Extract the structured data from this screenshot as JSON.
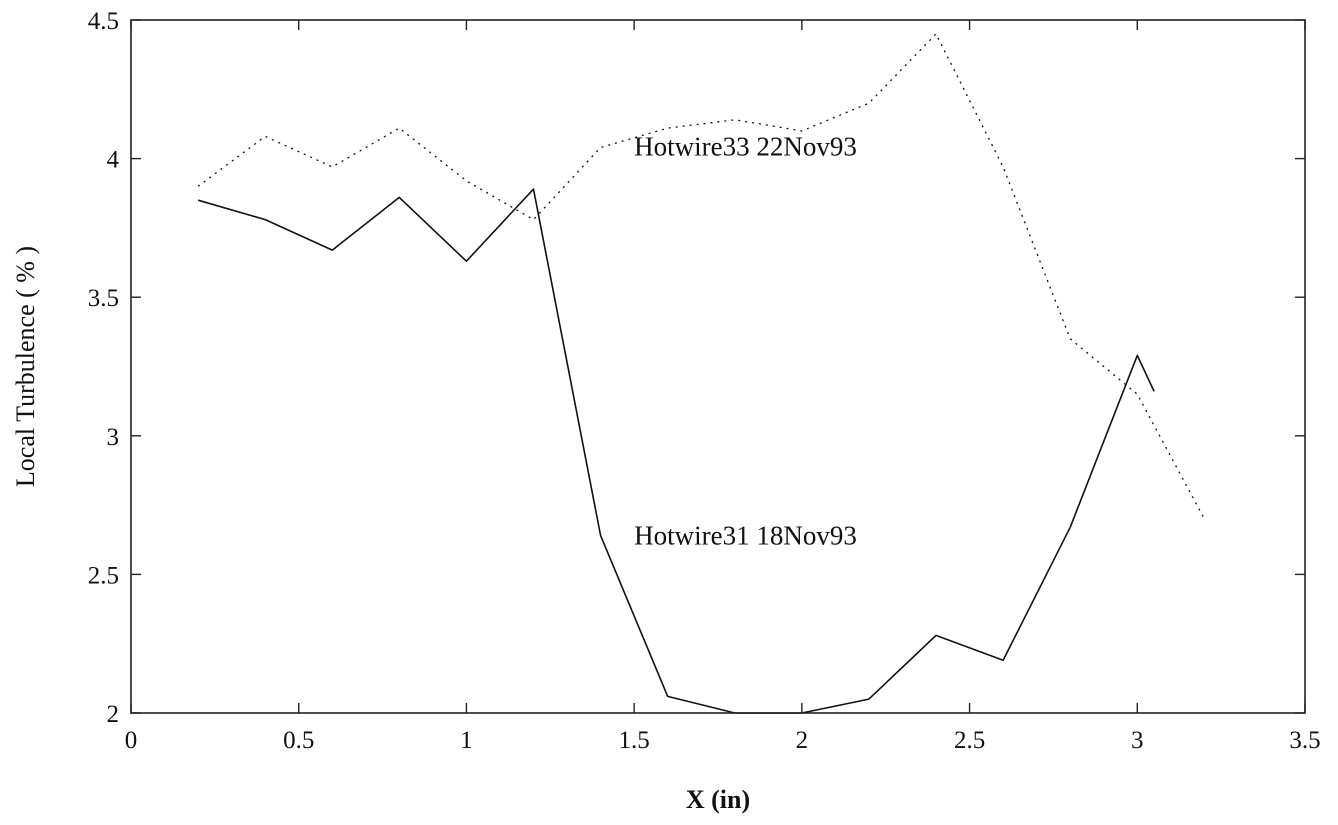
{
  "chart_data": {
    "type": "line",
    "title": "",
    "xlabel": "X (in)",
    "ylabel": "Local Turbulence  ( % )",
    "xlim": [
      0,
      3.5
    ],
    "ylim": [
      2,
      4.5
    ],
    "x_ticks": [
      "0",
      "0.5",
      "1",
      "1.5",
      "2",
      "2.5",
      "3",
      "3.5"
    ],
    "y_ticks": [
      "2",
      "2.5",
      "3",
      "3.5",
      "4",
      "4.5"
    ],
    "grid": false,
    "legend": "none",
    "series": [
      {
        "name": "Hotwire33 22Nov93",
        "style": "dotted",
        "x": [
          0.2,
          0.4,
          0.6,
          0.8,
          1.0,
          1.2,
          1.4,
          1.6,
          1.8,
          2.0,
          2.2,
          2.4,
          2.6,
          2.8,
          3.0,
          3.2
        ],
        "y": [
          3.9,
          4.08,
          3.97,
          4.11,
          3.92,
          3.78,
          4.04,
          4.11,
          4.14,
          4.1,
          4.2,
          4.45,
          3.97,
          3.35,
          3.15,
          2.7
        ]
      },
      {
        "name": "Hotwire31 18Nov93",
        "style": "solid",
        "x": [
          0.2,
          0.4,
          0.6,
          0.8,
          1.0,
          1.2,
          1.4,
          1.6,
          1.8,
          2.0,
          2.2,
          2.4,
          2.6,
          2.8,
          3.0,
          3.05
        ],
        "y": [
          3.85,
          3.78,
          3.67,
          3.86,
          3.63,
          3.89,
          2.64,
          2.06,
          2.0,
          2.0,
          2.05,
          2.28,
          2.19,
          2.67,
          3.29,
          3.16
        ]
      }
    ],
    "annotations": [
      {
        "text": "Hotwire33 22Nov93",
        "series": 0
      },
      {
        "text": "Hotwire31 18Nov93",
        "series": 1
      }
    ]
  }
}
